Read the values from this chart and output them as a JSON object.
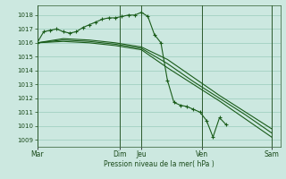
{
  "bg_color": "#cce8e0",
  "grid_color": "#99ccbb",
  "line_color": "#1a5c1a",
  "xlabel": "Pression niveau de la mer( hPa )",
  "ylim": [
    1008.5,
    1018.7
  ],
  "yticks": [
    1009,
    1010,
    1011,
    1012,
    1013,
    1014,
    1015,
    1016,
    1017,
    1018
  ],
  "xtick_labels": [
    "Mar",
    "Dim",
    "Jeu",
    "Ven",
    "Sam"
  ],
  "xtick_positions": [
    0,
    38,
    48,
    76,
    108
  ],
  "day_line_positions": [
    0,
    38,
    48,
    76,
    108
  ],
  "total_points": 112,
  "series1_x": [
    0,
    3,
    6,
    9,
    12,
    15,
    18,
    21,
    24,
    27,
    30,
    33,
    36,
    39,
    42,
    45,
    48,
    51,
    54,
    57,
    60,
    63,
    66,
    69,
    72,
    75,
    78,
    81,
    84,
    87,
    90,
    93,
    96,
    99,
    102,
    105,
    108
  ],
  "series1_y": [
    1016.0,
    1016.8,
    1016.9,
    1017.0,
    1016.8,
    1016.7,
    1016.8,
    1017.1,
    1017.3,
    1017.5,
    1017.7,
    1017.8,
    1017.8,
    1017.9,
    1018.0,
    1018.0,
    1018.2,
    1017.9,
    1016.6,
    1016.0,
    1013.3,
    1011.7,
    1011.5,
    1011.4,
    1011.2,
    1011.0,
    1010.4,
    1009.2,
    1010.6,
    1010.1,
    null,
    null,
    null,
    null,
    null,
    null,
    null
  ],
  "series2_x": [
    0,
    12,
    24,
    36,
    48,
    60,
    72,
    84,
    96,
    108
  ],
  "series2_y": [
    1016.0,
    1016.1,
    1016.0,
    1015.8,
    1015.5,
    1014.2,
    1013.0,
    1011.8,
    1010.5,
    1009.2
  ],
  "series3_x": [
    0,
    12,
    24,
    36,
    48,
    60,
    72,
    84,
    96,
    108
  ],
  "series3_y": [
    1016.0,
    1016.2,
    1016.1,
    1015.9,
    1015.6,
    1014.5,
    1013.2,
    1012.0,
    1010.8,
    1009.5
  ],
  "series4_x": [
    0,
    12,
    24,
    36,
    48,
    60,
    72,
    84,
    96,
    108
  ],
  "series4_y": [
    1016.0,
    1016.3,
    1016.2,
    1016.0,
    1015.7,
    1014.8,
    1013.5,
    1012.2,
    1011.0,
    1009.8
  ]
}
